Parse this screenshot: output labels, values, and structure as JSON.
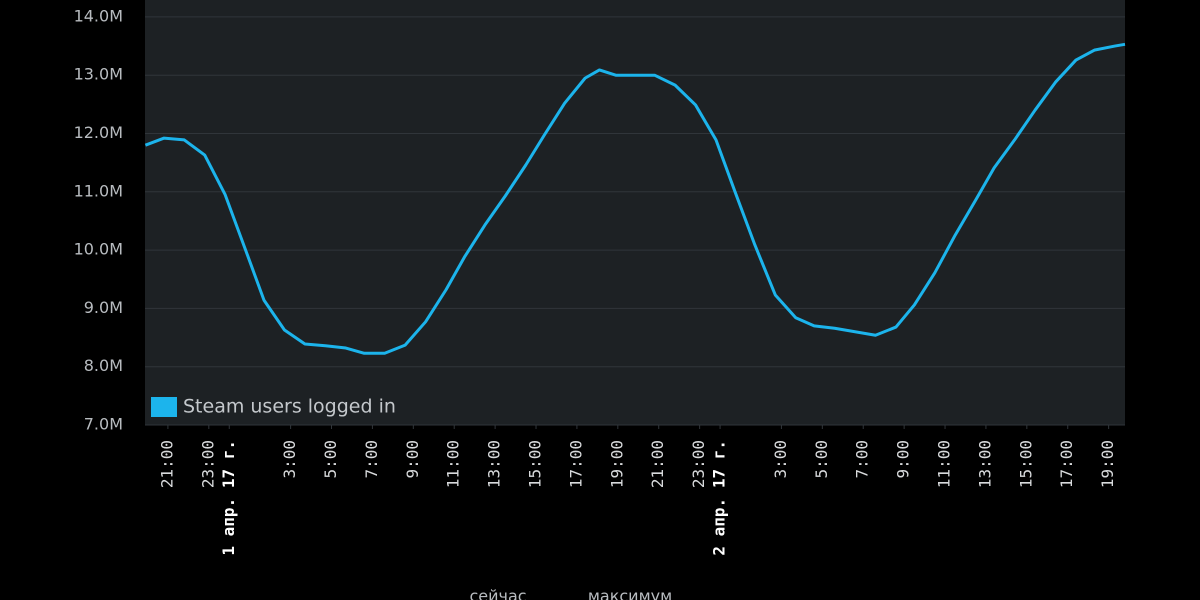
{
  "chart_data": {
    "type": "line",
    "x": [
      -1.1,
      -0.2,
      0.8,
      1.8,
      2.8,
      3.8,
      4.7,
      5.7,
      6.7,
      7.7,
      8.7,
      9.6,
      10.6,
      11.6,
      12.6,
      13.6,
      14.5,
      15.5,
      16.5,
      17.5,
      18.4,
      19.4,
      20.4,
      21.1,
      21.9,
      22.8,
      23.8,
      24.8,
      25.8,
      26.8,
      27.7,
      28.7,
      29.7,
      30.7,
      31.6,
      32.6,
      33.6,
      34.6,
      35.6,
      36.5,
      37.5,
      38.5,
      39.5,
      40.4,
      41.4,
      42.4,
      43.4,
      44.4,
      45.3,
      46.3,
      46.8
    ],
    "series": [
      {
        "name": "Steam users logged in",
        "color": "#1cb4ec",
        "values": [
          11.8,
          11.92,
          11.89,
          11.63,
          10.95,
          10.0,
          9.14,
          8.63,
          8.39,
          8.36,
          8.32,
          8.23,
          8.23,
          8.37,
          8.77,
          9.32,
          9.88,
          10.43,
          10.93,
          11.46,
          11.97,
          12.52,
          12.95,
          13.09,
          13.0,
          13.0,
          13.0,
          12.83,
          12.49,
          11.89,
          11.03,
          10.09,
          9.23,
          8.84,
          8.7,
          8.66,
          8.6,
          8.54,
          8.68,
          9.06,
          9.61,
          10.26,
          10.86,
          11.41,
          11.89,
          12.4,
          12.88,
          13.26,
          13.43,
          13.5,
          13.53
        ]
      }
    ],
    "xlim": [
      -1.12,
      46.8
    ],
    "ylim": [
      7,
      14.29
    ],
    "yticks": [
      {
        "value": 7,
        "label": "7.0M"
      },
      {
        "value": 8,
        "label": "8.0M"
      },
      {
        "value": 9,
        "label": "9.0M"
      },
      {
        "value": 10,
        "label": "10.0M"
      },
      {
        "value": 11,
        "label": "11.0M"
      },
      {
        "value": 12,
        "label": "12.0M"
      },
      {
        "value": 13,
        "label": "13.0M"
      },
      {
        "value": 14,
        "label": "14.0M"
      }
    ],
    "xticks": [
      {
        "value": 0,
        "label": "21:00"
      },
      {
        "value": 2,
        "label": "23:00"
      },
      {
        "value": 3,
        "label": "1 апр. 17 г."
      },
      {
        "value": 6,
        "label": "3:00"
      },
      {
        "value": 8,
        "label": "5:00"
      },
      {
        "value": 10,
        "label": "7:00"
      },
      {
        "value": 12,
        "label": "9:00"
      },
      {
        "value": 14,
        "label": "11:00"
      },
      {
        "value": 16,
        "label": "13:00"
      },
      {
        "value": 18,
        "label": "15:00"
      },
      {
        "value": 20,
        "label": "17:00"
      },
      {
        "value": 22,
        "label": "19:00"
      },
      {
        "value": 24,
        "label": "21:00"
      },
      {
        "value": 26,
        "label": "23:00"
      },
      {
        "value": 27,
        "label": "2 апр. 17 г."
      },
      {
        "value": 30,
        "label": "3:00"
      },
      {
        "value": 32,
        "label": "5:00"
      },
      {
        "value": 34,
        "label": "7:00"
      },
      {
        "value": 36,
        "label": "9:00"
      },
      {
        "value": 38,
        "label": "11:00"
      },
      {
        "value": 40,
        "label": "13:00"
      },
      {
        "value": 42,
        "label": "15:00"
      },
      {
        "value": 44,
        "label": "17:00"
      },
      {
        "value": 46,
        "label": "19:00"
      }
    ],
    "grid": true,
    "legend": "lower left"
  },
  "footer": [
    "сейчас",
    "максимум"
  ]
}
